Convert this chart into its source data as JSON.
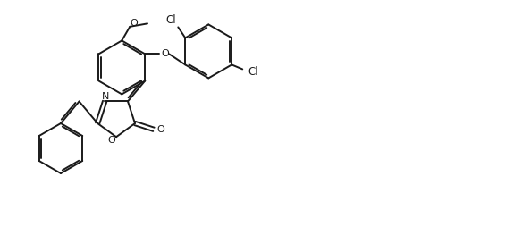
{
  "background_color": "#ffffff",
  "line_color": "#1a1a1a",
  "line_width": 1.4,
  "figsize": [
    5.84,
    2.54
  ],
  "dpi": 100,
  "atoms": {
    "N_label": "N",
    "O_ring_label": "O",
    "O_carbonyl_label": "O",
    "O_methoxy_label": "O",
    "O_ether_label": "O",
    "Cl1_label": "Cl",
    "Cl2_label": "Cl"
  }
}
